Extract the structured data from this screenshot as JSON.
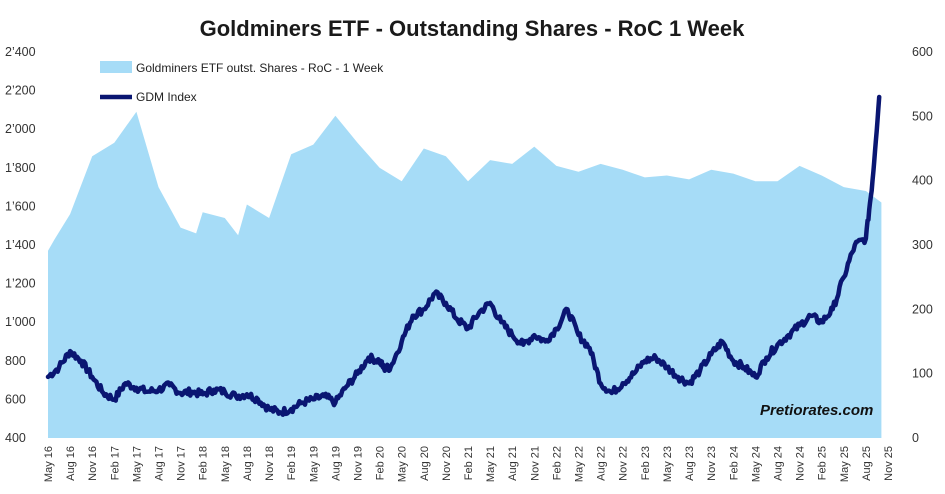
{
  "chart_data": {
    "type": "area+line",
    "title": "Goldminers ETF - Outstanding Shares - RoC 1 Week",
    "left_axis": {
      "ylim": [
        400,
        2400
      ],
      "ticks": [
        "400",
        "600",
        "800",
        "1’000",
        "1’200",
        "1’400",
        "1’600",
        "1’800",
        "2’000",
        "2’200",
        "2’400"
      ]
    },
    "right_axis": {
      "ylim": [
        0,
        600
      ],
      "ticks": [
        "0",
        "100",
        "200",
        "300",
        "400",
        "500",
        "600"
      ]
    },
    "x_ticks": [
      "May 16",
      "Aug 16",
      "Nov 16",
      "Feb 17",
      "May 17",
      "Aug 17",
      "Nov 17",
      "Feb 18",
      "May 18",
      "Aug 18",
      "Nov 18",
      "Feb 19",
      "May 19",
      "Aug 19",
      "Nov 19",
      "Feb 20",
      "May 20",
      "Aug 20",
      "Nov 20",
      "Feb 21",
      "May 21",
      "Aug 21",
      "Nov 21",
      "Feb 22",
      "May 22",
      "Aug 22",
      "Nov 22",
      "Feb 23",
      "May 23",
      "Aug 23",
      "Nov 23",
      "Feb 24",
      "May 24",
      "Aug 24",
      "Nov 24",
      "Feb 25",
      "May 25",
      "Aug 25",
      "Nov 25"
    ],
    "series": [
      {
        "name": "Goldminers ETF outst. Shares - RoC - 1 Week",
        "type": "area",
        "axis": "left",
        "color": "#a6dcf7",
        "x": [
          0,
          0.3,
          1,
          2,
          3,
          4,
          5,
          6,
          6.7,
          7,
          8,
          8.6,
          9,
          10,
          11,
          12,
          13,
          14,
          15,
          16,
          17,
          18,
          19,
          20,
          21,
          22,
          23,
          24,
          25,
          26,
          27,
          28,
          29,
          30,
          31,
          32,
          33,
          34,
          35,
          36,
          37,
          37.7
        ],
        "values": [
          1370,
          1430,
          1560,
          1860,
          1930,
          2090,
          1700,
          1490,
          1460,
          1570,
          1540,
          1450,
          1610,
          1540,
          1870,
          1920,
          2070,
          1930,
          1800,
          1730,
          1900,
          1860,
          1730,
          1840,
          1820,
          1910,
          1810,
          1780,
          1820,
          1790,
          1750,
          1760,
          1740,
          1790,
          1770,
          1730,
          1730,
          1810,
          1760,
          1700,
          1680,
          1620
        ]
      },
      {
        "name": "GDM Index",
        "type": "line",
        "axis": "right",
        "color": "#0a1672",
        "x": [
          0,
          0.5,
          1,
          1.5,
          2,
          2.5,
          3,
          3.5,
          4,
          4.5,
          5,
          5.5,
          6,
          6.5,
          7,
          7.5,
          8,
          8.5,
          9,
          9.5,
          10,
          10.5,
          11,
          11.5,
          12,
          12.5,
          13,
          13.5,
          14,
          14.5,
          15,
          15.2,
          15.5,
          16,
          16.5,
          17,
          17.5,
          18,
          18.5,
          19,
          19.5,
          20,
          20.5,
          21,
          21.5,
          22,
          22.5,
          23,
          23.5,
          24,
          24.5,
          25,
          25.5,
          26,
          26.5,
          27,
          27.5,
          28,
          28.5,
          29,
          29.5,
          30,
          30.5,
          31,
          31.5,
          32,
          32.5,
          33,
          33.5,
          34,
          34.5,
          35,
          35.5,
          36,
          36.5,
          37,
          37.3,
          37.6
        ],
        "values": [
          95,
          110,
          135,
          120,
          95,
          70,
          60,
          85,
          78,
          72,
          75,
          82,
          70,
          72,
          68,
          75,
          72,
          65,
          68,
          60,
          45,
          40,
          45,
          55,
          60,
          65,
          55,
          80,
          100,
          125,
          120,
          108,
          110,
          150,
          190,
          200,
          225,
          210,
          185,
          170,
          195,
          210,
          180,
          160,
          145,
          160,
          150,
          170,
          200,
          160,
          140,
          85,
          70,
          85,
          100,
          120,
          125,
          110,
          95,
          85,
          105,
          130,
          150,
          120,
          110,
          95,
          125,
          145,
          160,
          175,
          190,
          180,
          200,
          250,
          300,
          310,
          400,
          530
        ]
      }
    ],
    "legend": [
      "Goldminers ETF outst. Shares - RoC - 1 Week",
      "GDM Index"
    ],
    "legend_position": "top-left",
    "grid": false,
    "annotation": "Pretiorates.com"
  }
}
